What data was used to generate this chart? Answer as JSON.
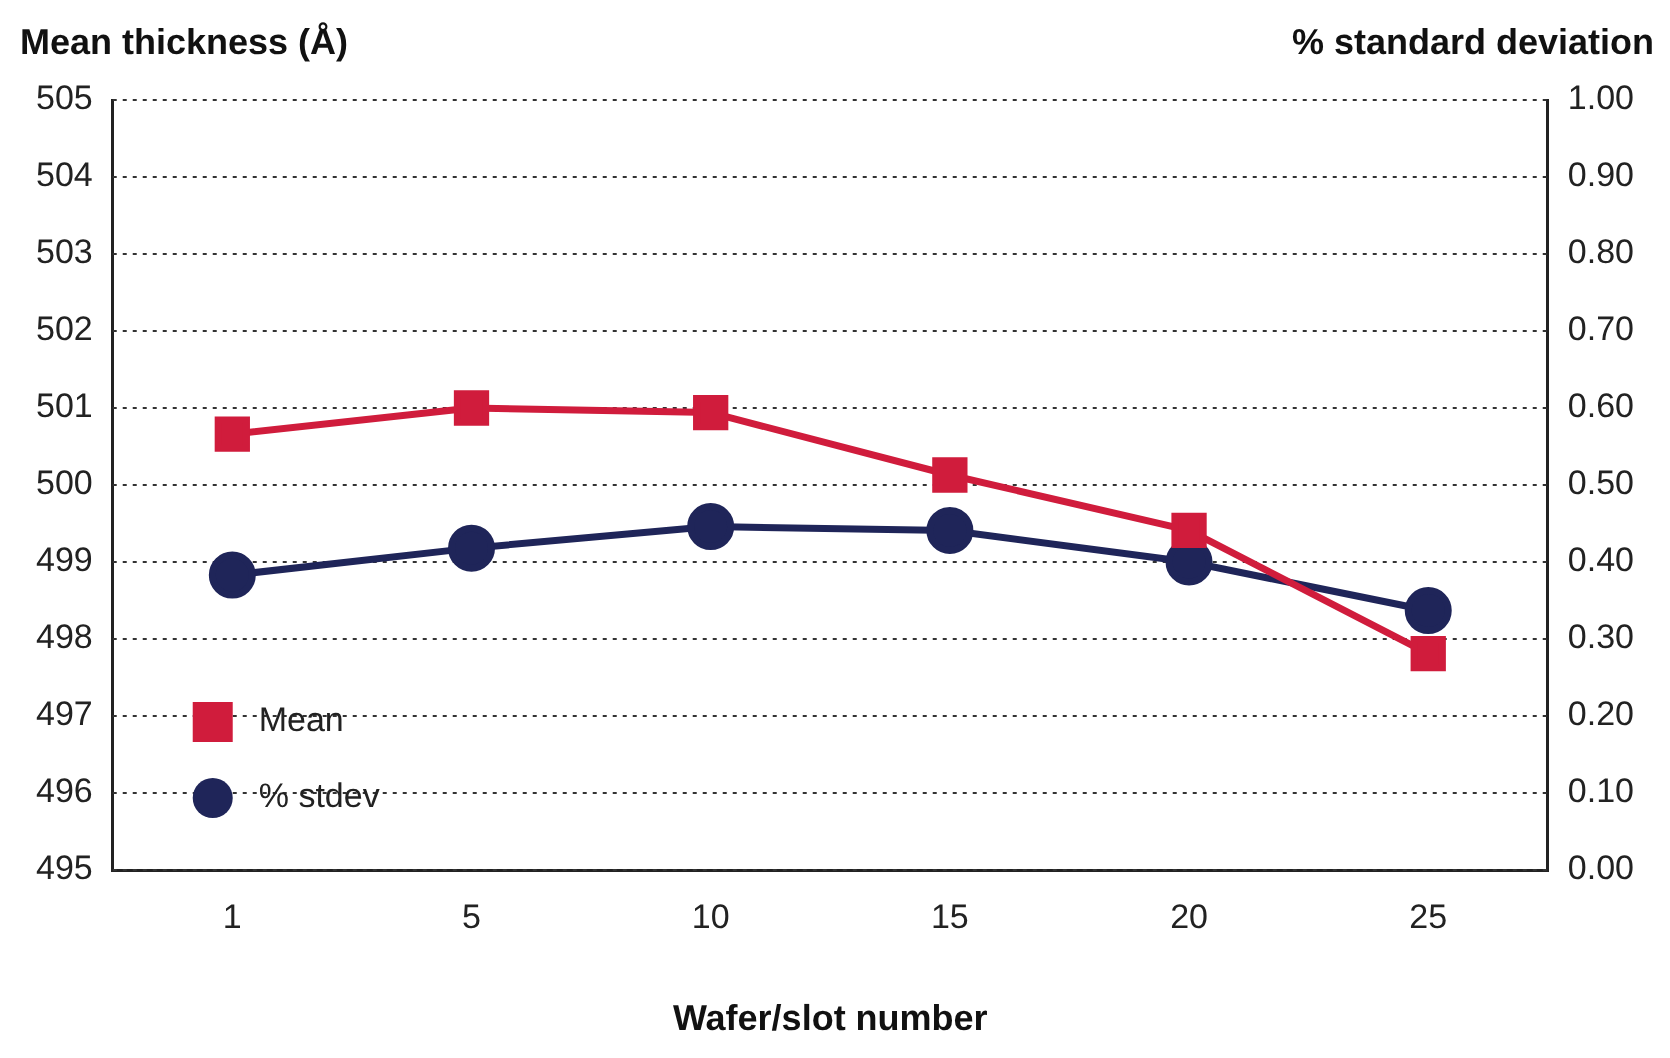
{
  "chart_data": {
    "type": "line",
    "xlabel": "Wafer/slot number",
    "ylabel": "Mean thickness (Å)",
    "y2label": "% standard deviation",
    "categories": [
      "1",
      "5",
      "10",
      "15",
      "20",
      "25"
    ],
    "series": [
      {
        "name": "Mean",
        "color": "#d01c3c",
        "marker": "square",
        "values": [
          500.66,
          501.0,
          500.94,
          500.13,
          499.41,
          497.81
        ]
      },
      {
        "name": "% stdev",
        "color": "#1f2559",
        "marker": "circle",
        "axis": "y2",
        "values": [
          0.383,
          0.418,
          0.446,
          0.441,
          0.4,
          0.337
        ]
      }
    ],
    "ylim": [
      495,
      505
    ],
    "yticks": [
      495,
      496,
      497,
      498,
      499,
      500,
      501,
      502,
      503,
      504,
      505
    ],
    "y2lim": [
      0,
      1
    ],
    "y2ticks": [
      {
        "value": 0,
        "label": "0.00"
      },
      {
        "value": 0.1,
        "label": "0.10"
      },
      {
        "value": 0.2,
        "label": "0.20"
      },
      {
        "value": 0.3,
        "label": "0.30"
      },
      {
        "value": 0.4,
        "label": "0.40"
      },
      {
        "value": 0.5,
        "label": "0.50"
      },
      {
        "value": 0.6,
        "label": "0.60"
      },
      {
        "value": 0.7,
        "label": "0.70"
      },
      {
        "value": 0.8,
        "label": "0.80"
      },
      {
        "value": 0.9,
        "label": "0.90"
      },
      {
        "value": 1,
        "label": "1.00"
      }
    ],
    "grid": "y",
    "legend": "bottom left",
    "line_style": "solid"
  }
}
